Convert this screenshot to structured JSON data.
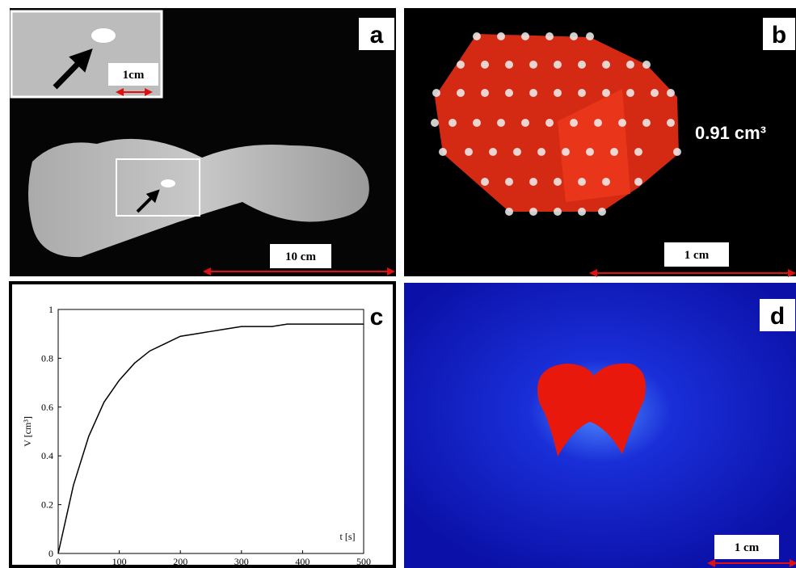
{
  "panels": {
    "a": {
      "label": "a",
      "inset_scale_bar": "1cm",
      "scale_bar": "10 cm"
    },
    "b": {
      "label": "b",
      "volume": "0.91 cm³",
      "scale_bar": "1 cm"
    },
    "c": {
      "label": "c"
    },
    "d": {
      "label": "d",
      "scale_bar": "1 cm"
    }
  },
  "chart_data": {
    "type": "line",
    "xlabel": "t [s]",
    "ylabel": "V [cm³]",
    "x": [
      0,
      25,
      50,
      75,
      100,
      125,
      150,
      175,
      200,
      225,
      250,
      275,
      300,
      325,
      350,
      375,
      400,
      425,
      450,
      475,
      500
    ],
    "values": [
      0,
      0.28,
      0.48,
      0.62,
      0.71,
      0.78,
      0.83,
      0.86,
      0.89,
      0.9,
      0.91,
      0.92,
      0.93,
      0.93,
      0.93,
      0.94,
      0.94,
      0.94,
      0.94,
      0.94,
      0.94
    ],
    "color": "#000000",
    "xlim": [
      0,
      500
    ],
    "xticks": [
      0,
      100,
      200,
      300,
      400,
      500
    ],
    "ylim": [
      0,
      1
    ],
    "yticks": [
      0,
      0.2,
      0.4,
      0.6,
      0.8,
      1
    ]
  }
}
